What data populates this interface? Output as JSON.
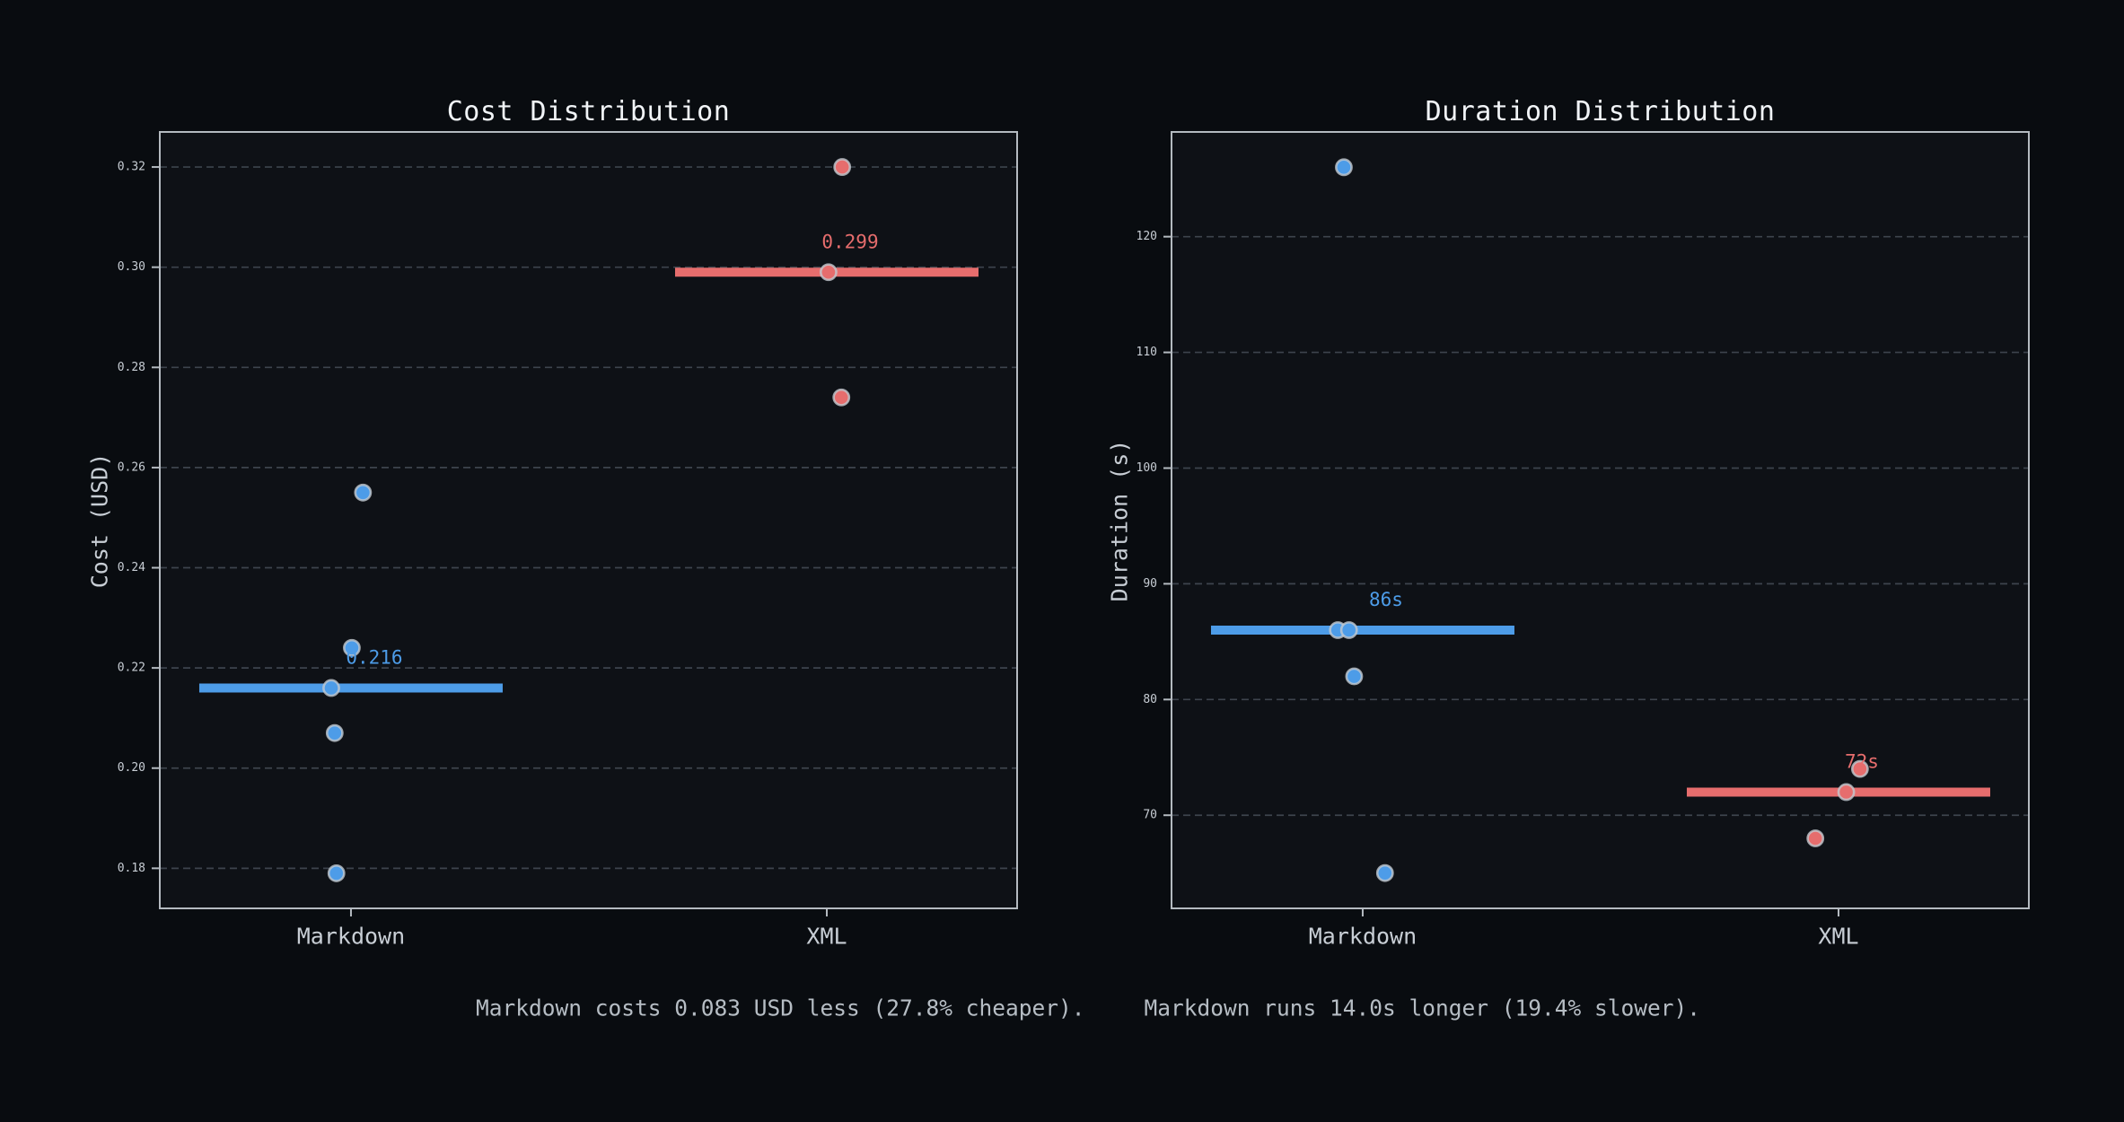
{
  "figure": {
    "background": "#090c10",
    "annotation_left": "Markdown costs 0.083 USD less (27.8% cheaper).",
    "annotation_right": "Markdown runs 14.0s longer (19.4% slower)."
  },
  "colors": {
    "markdown": "#4d9ce8",
    "xml": "#e66d6d",
    "axes_background": "#0e1116",
    "spine": "#b4bac0",
    "grid": "#3d444d",
    "tick_label": "#c8ced5",
    "title": "#f1f4f7",
    "axis_label": "#c8ced5",
    "annotation": "#b6bdc4",
    "point_stroke": "#c3c9cf"
  },
  "chart_data": [
    {
      "type": "scatter",
      "title": "Cost Distribution",
      "ylabel": "Cost (USD)",
      "xlabel": "",
      "grid": true,
      "legend": "none",
      "ylim": [
        0.172,
        0.327
      ],
      "yticks": [
        {
          "v": 0.18,
          "label": "0.18"
        },
        {
          "v": 0.2,
          "label": "0.20"
        },
        {
          "v": 0.22,
          "label": "0.22"
        },
        {
          "v": 0.24,
          "label": "0.24"
        },
        {
          "v": 0.26,
          "label": "0.26"
        },
        {
          "v": 0.28,
          "label": "0.28"
        },
        {
          "v": 0.3,
          "label": "0.30"
        },
        {
          "v": 0.32,
          "label": "0.32"
        }
      ],
      "categories": [
        {
          "label": "Markdown",
          "x": 0.223
        },
        {
          "label": "XML",
          "x": 0.778
        }
      ],
      "series": [
        {
          "name": "Markdown",
          "color": "markdown",
          "median": 0.216,
          "median_label": "0.216",
          "points": [
            {
              "v": 0.255,
              "x": 0.237
            },
            {
              "v": 0.224,
              "x": 0.224
            },
            {
              "v": 0.216,
              "x": 0.2
            },
            {
              "v": 0.207,
              "x": 0.204
            },
            {
              "v": 0.179,
              "x": 0.206
            }
          ]
        },
        {
          "name": "XML",
          "color": "xml",
          "median": 0.299,
          "median_label": "0.299",
          "points": [
            {
              "v": 0.32,
              "x": 0.796
            },
            {
              "v": 0.299,
              "x": 0.78
            },
            {
              "v": 0.274,
              "x": 0.795
            }
          ]
        }
      ]
    },
    {
      "type": "scatter",
      "title": "Duration Distribution",
      "ylabel": "Duration (s)",
      "xlabel": "",
      "grid": true,
      "legend": "none",
      "ylim": [
        61.95,
        129.05
      ],
      "yticks": [
        {
          "v": 70,
          "label": "70"
        },
        {
          "v": 80,
          "label": "80"
        },
        {
          "v": 90,
          "label": "90"
        },
        {
          "v": 100,
          "label": "100"
        },
        {
          "v": 110,
          "label": "110"
        },
        {
          "v": 120,
          "label": "120"
        }
      ],
      "categories": [
        {
          "label": "Markdown",
          "x": 0.223
        },
        {
          "label": "XML",
          "x": 0.778
        }
      ],
      "series": [
        {
          "name": "Markdown",
          "color": "markdown",
          "median": 86,
          "median_label": "86s",
          "points": [
            {
              "v": 126,
              "x": 0.201
            },
            {
              "v": 86,
              "x": 0.194
            },
            {
              "v": 86,
              "x": 0.207
            },
            {
              "v": 82,
              "x": 0.213
            },
            {
              "v": 65,
              "x": 0.249
            }
          ]
        },
        {
          "name": "XML",
          "color": "xml",
          "median": 72,
          "median_label": "72s",
          "points": [
            {
              "v": 74,
              "x": 0.803
            },
            {
              "v": 72,
              "x": 0.787
            },
            {
              "v": 68,
              "x": 0.751
            }
          ]
        }
      ]
    }
  ]
}
